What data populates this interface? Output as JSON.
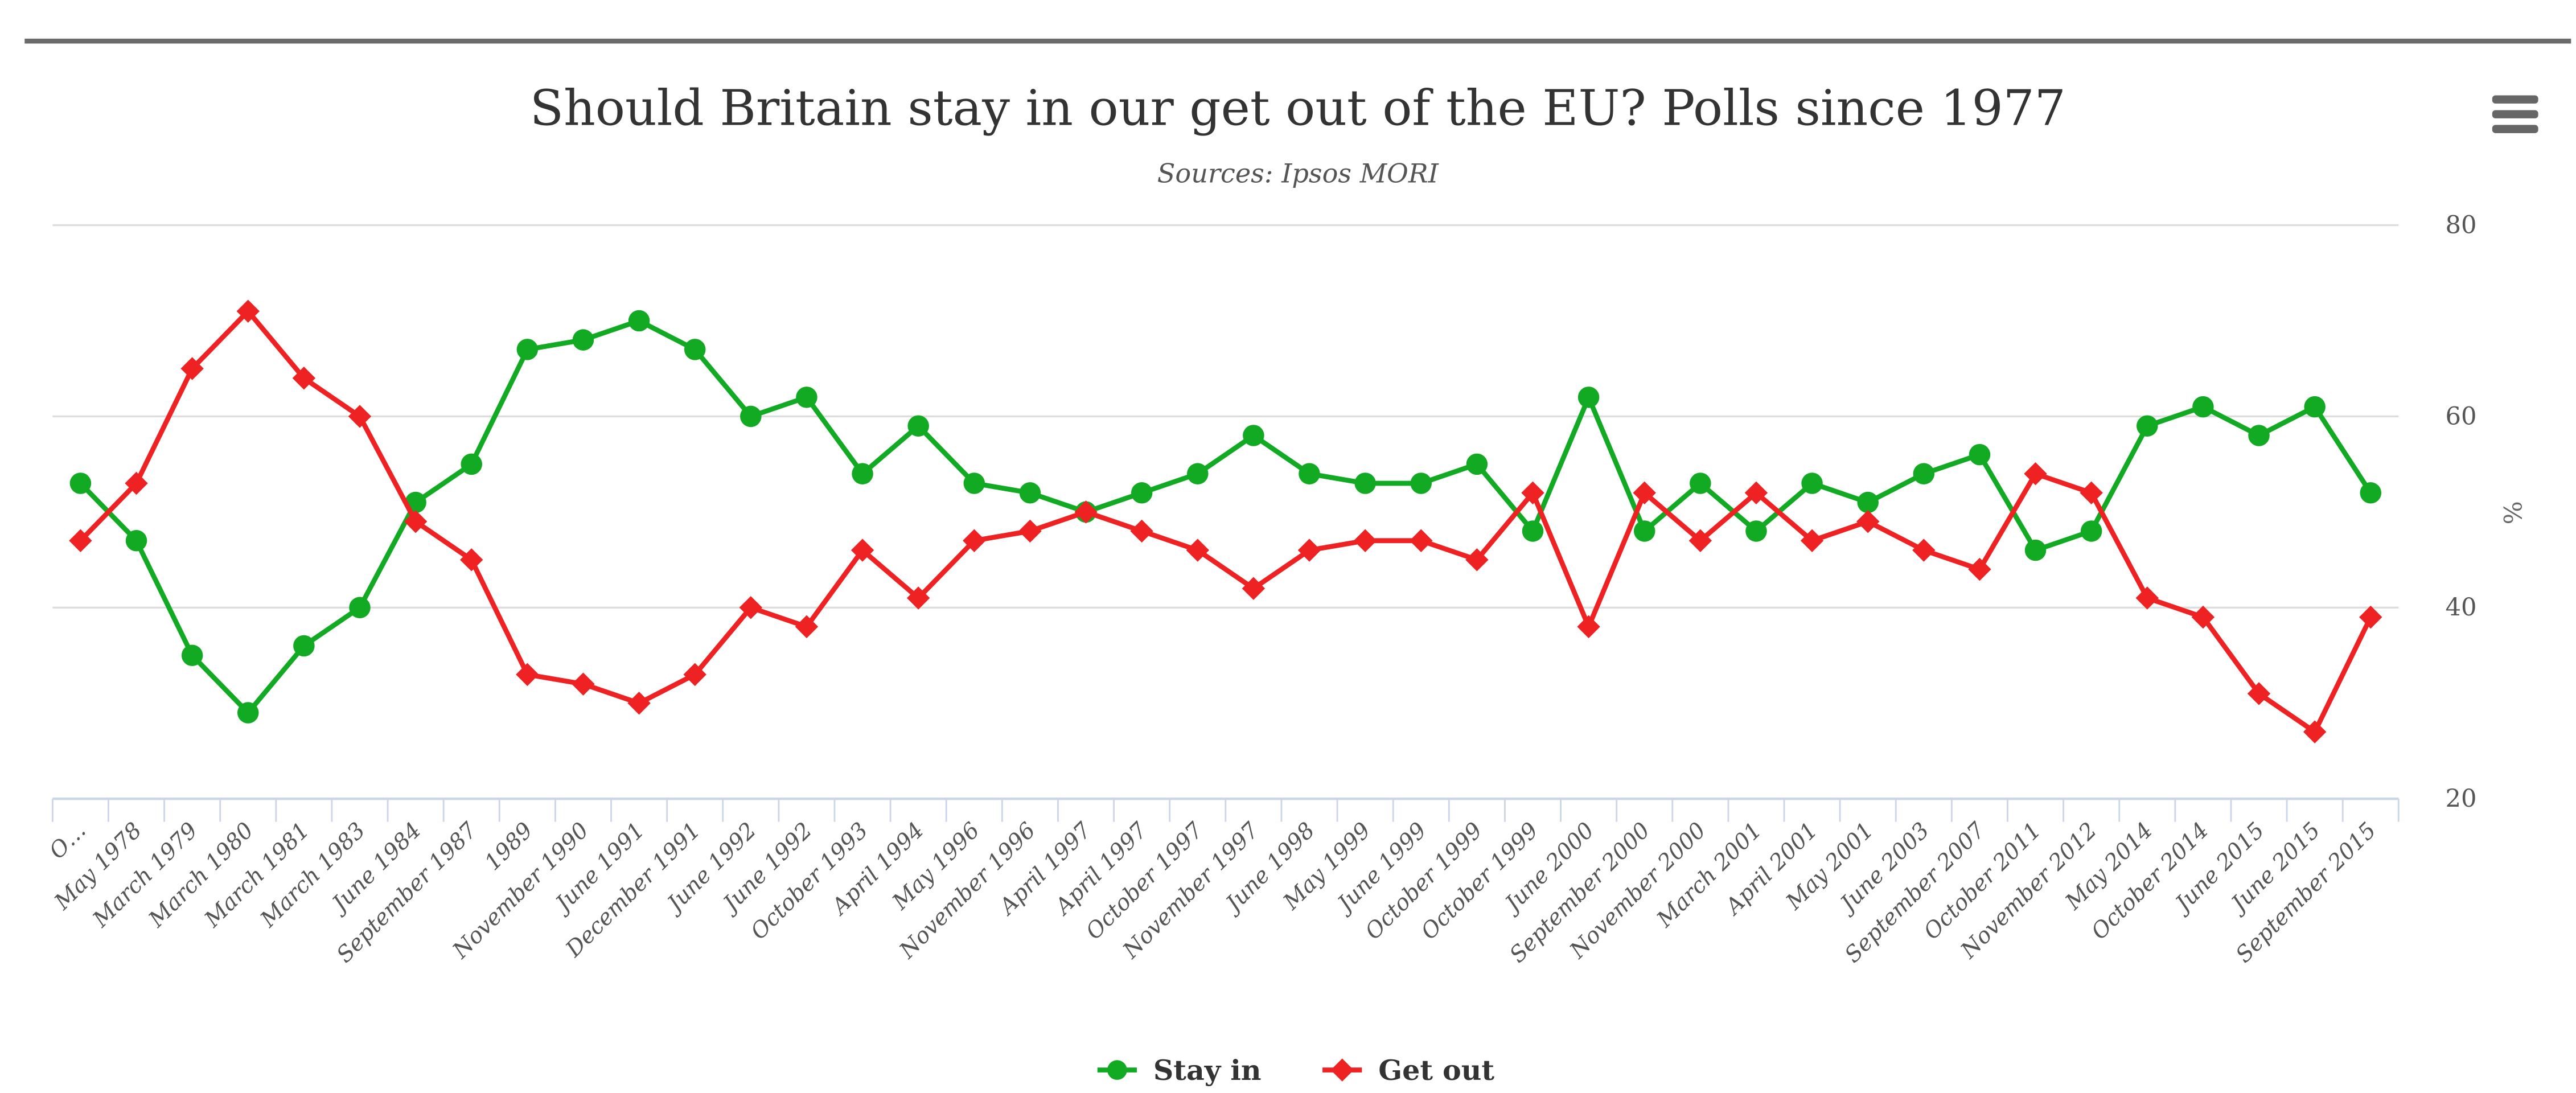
{
  "header": {
    "menu_icon": "hamburger-menu-icon"
  },
  "chart_data": {
    "type": "line",
    "title": "Should Britain stay in our get out of the EU? Polls since 1977",
    "subtitle": "Sources: Ipsos MORI",
    "xlabel": "",
    "ylabel": "%",
    "ylim": [
      20,
      80
    ],
    "yticks": [
      20,
      40,
      60,
      80
    ],
    "ytick_labels": [
      "20",
      "40",
      "60",
      "80"
    ],
    "y_axis_side": "right",
    "grid": true,
    "legend_position": "bottom-center",
    "categories": [
      "O…",
      "May 1978",
      "March 1979",
      "March 1980",
      "March 1981",
      "March 1983",
      "June 1984",
      "September 1987",
      "1989",
      "November 1990",
      "June 1991",
      "December 1991",
      "June 1992",
      "June 1992",
      "October 1993",
      "April 1994",
      "May 1996",
      "November 1996",
      "April 1997",
      "April 1997",
      "October 1997",
      "November 1997",
      "June 1998",
      "May 1999",
      "June 1999",
      "October 1999",
      "October 1999",
      "June 2000",
      "September 2000",
      "November 2000",
      "March 2001",
      "April 2001",
      "May 2001",
      "June 2003",
      "September 2007",
      "October 2011",
      "November 2012",
      "May 2014",
      "October 2014",
      "June 2015",
      "June 2015",
      "September 2015"
    ],
    "series": [
      {
        "name": "Stay in",
        "color": "#11aa22",
        "marker": "circle",
        "values": [
          53,
          47,
          35,
          29,
          36,
          40,
          51,
          55,
          67,
          68,
          70,
          67,
          60,
          62,
          54,
          59,
          53,
          52,
          50,
          52,
          54,
          58,
          54,
          53,
          53,
          55,
          48,
          62,
          48,
          53,
          48,
          53,
          51,
          54,
          56,
          46,
          48,
          59,
          61,
          58,
          61,
          52
        ]
      },
      {
        "name": "Get out",
        "color": "#ee2222",
        "marker": "diamond",
        "values": [
          47,
          53,
          65,
          71,
          64,
          60,
          49,
          45,
          33,
          32,
          30,
          33,
          40,
          38,
          46,
          41,
          47,
          48,
          50,
          48,
          46,
          42,
          46,
          47,
          47,
          45,
          52,
          38,
          52,
          47,
          52,
          47,
          49,
          46,
          44,
          54,
          52,
          41,
          39,
          31,
          27,
          39
        ]
      }
    ]
  }
}
